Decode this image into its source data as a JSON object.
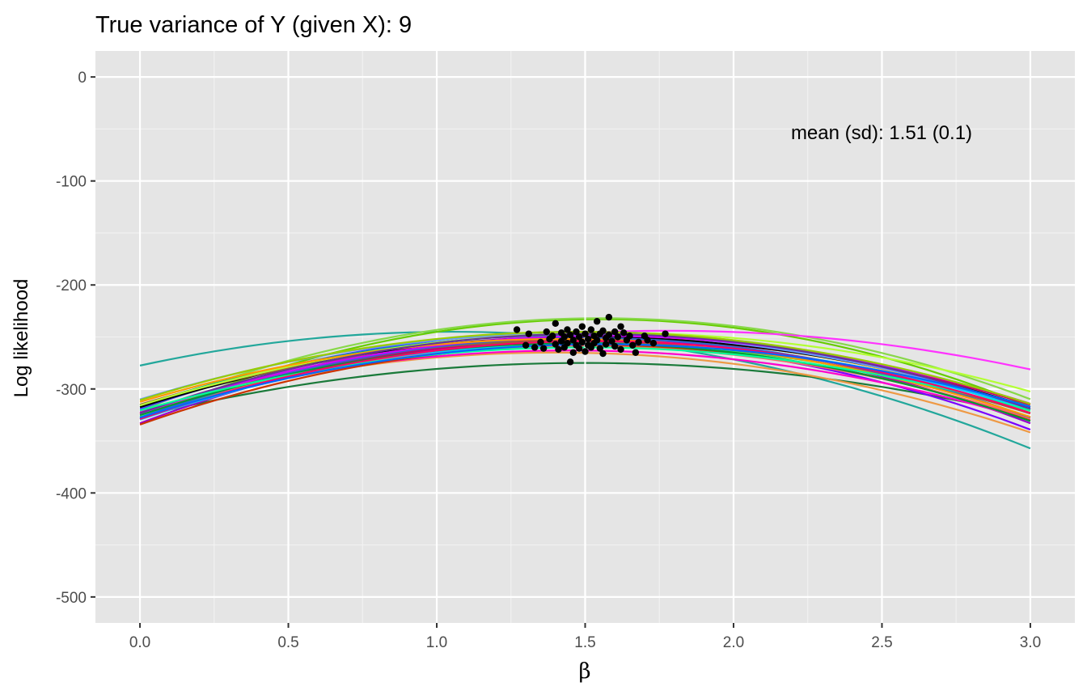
{
  "chart_data": {
    "type": "line",
    "title": "True variance of Y (given X): 9",
    "xlabel": "β",
    "ylabel": "Log likelihood",
    "xlim": [
      -0.15,
      3.15
    ],
    "ylim": [
      -525,
      25
    ],
    "x_ticks": [
      0,
      0.5,
      1,
      1.5,
      2,
      2.5,
      3
    ],
    "x_tick_labels": [
      "0.0",
      "0.5",
      "1.0",
      "1.5",
      "2.0",
      "2.5",
      "3.0"
    ],
    "y_ticks": [
      0,
      -100,
      -200,
      -300,
      -400,
      -500
    ],
    "y_tick_labels": [
      "0",
      "-100",
      "-200",
      "-300",
      "-400",
      "-500"
    ],
    "grid": true,
    "legend": "none",
    "vline_x": 1.5,
    "annotation": {
      "text": "mean (sd): 1.51 (0.1)",
      "x": 2.5,
      "y": -53
    },
    "curve_x_range": [
      0,
      3
    ],
    "series": [
      {
        "color": "#22a79b",
        "peak_x": 1.05,
        "peak_y": -245,
        "curvature": 29.5
      },
      {
        "color": "#66cc00",
        "peak_x": 1.55,
        "peak_y": -233,
        "curvature": 40.0
      },
      {
        "color": "#88d84a",
        "peak_x": 1.55,
        "peak_y": -232,
        "curvature": 37.0
      },
      {
        "color": "#ff33ff",
        "peak_x": 1.78,
        "peak_y": -244,
        "curvature": 25.0
      },
      {
        "color": "#1a7a3a",
        "peak_x": 1.5,
        "peak_y": -275,
        "curvature": 23.0
      },
      {
        "color": "#ee9944",
        "peak_x": 1.4,
        "peak_y": -265,
        "curvature": 30.0
      },
      {
        "color": "#9900cc",
        "peak_x": 1.5,
        "peak_y": -252,
        "curvature": 36.0
      },
      {
        "color": "#7a00ff",
        "peak_x": 1.45,
        "peak_y": -255,
        "curvature": 35.0
      },
      {
        "color": "#ff00cc",
        "peak_x": 1.45,
        "peak_y": -263,
        "curvature": 28.0
      },
      {
        "color": "#33ff66",
        "peak_x": 1.52,
        "peak_y": -257,
        "curvature": 30.0
      },
      {
        "color": "#4444ff",
        "peak_x": 1.5,
        "peak_y": -245,
        "curvature": 33.0
      },
      {
        "color": "#cc0066",
        "peak_x": 1.55,
        "peak_y": -252,
        "curvature": 30.0
      },
      {
        "color": "#00aa88",
        "peak_x": 1.48,
        "peak_y": -248,
        "curvature": 31.0
      },
      {
        "color": "#ffcc00",
        "peak_x": 1.52,
        "peak_y": -250,
        "curvature": 32.0
      },
      {
        "color": "#000000",
        "peak_x": 1.5,
        "peak_y": -250,
        "curvature": 30.0
      },
      {
        "color": "#6699ff",
        "peak_x": 1.45,
        "peak_y": -247,
        "curvature": 30.0
      },
      {
        "color": "#cc3300",
        "peak_x": 1.52,
        "peak_y": -258,
        "curvature": 33.0
      },
      {
        "color": "#00ccff",
        "peak_x": 1.55,
        "peak_y": -255,
        "curvature": 31.0
      },
      {
        "color": "#996633",
        "peak_x": 1.45,
        "peak_y": -254,
        "curvature": 29.0
      },
      {
        "color": "#b3ff33",
        "peak_x": 1.58,
        "peak_y": -246,
        "curvature": 28.0
      },
      {
        "color": "#ff6666",
        "peak_x": 1.48,
        "peak_y": -259,
        "curvature": 30.0
      },
      {
        "color": "#3366cc",
        "peak_x": 1.5,
        "peak_y": -251,
        "curvature": 34.0
      },
      {
        "color": "#009933",
        "peak_x": 1.47,
        "peak_y": -256,
        "curvature": 32.0
      },
      {
        "color": "#cc00ff",
        "peak_x": 1.55,
        "peak_y": -249,
        "curvature": 31.0
      },
      {
        "color": "#ff9900",
        "peak_x": 1.42,
        "peak_y": -252,
        "curvature": 30.0
      },
      {
        "color": "#663399",
        "peak_x": 1.52,
        "peak_y": -247,
        "curvature": 33.0
      },
      {
        "color": "#00ff99",
        "peak_x": 1.5,
        "peak_y": -260,
        "curvature": 27.0
      },
      {
        "color": "#ff0066",
        "peak_x": 1.53,
        "peak_y": -254,
        "curvature": 32.0
      },
      {
        "color": "#99cc00",
        "peak_x": 1.48,
        "peak_y": -245,
        "curvature": 30.0
      },
      {
        "color": "#0066ff",
        "peak_x": 1.56,
        "peak_y": -257,
        "curvature": 29.0
      }
    ],
    "points": [
      {
        "x": 1.27,
        "y": -243
      },
      {
        "x": 1.3,
        "y": -258
      },
      {
        "x": 1.31,
        "y": -247
      },
      {
        "x": 1.33,
        "y": -260
      },
      {
        "x": 1.35,
        "y": -255
      },
      {
        "x": 1.36,
        "y": -261
      },
      {
        "x": 1.37,
        "y": -245
      },
      {
        "x": 1.38,
        "y": -252
      },
      {
        "x": 1.39,
        "y": -249
      },
      {
        "x": 1.4,
        "y": -237
      },
      {
        "x": 1.4,
        "y": -257
      },
      {
        "x": 1.41,
        "y": -262
      },
      {
        "x": 1.42,
        "y": -246
      },
      {
        "x": 1.42,
        "y": -254
      },
      {
        "x": 1.43,
        "y": -250
      },
      {
        "x": 1.43,
        "y": -260
      },
      {
        "x": 1.44,
        "y": -243
      },
      {
        "x": 1.44,
        "y": -256
      },
      {
        "x": 1.45,
        "y": -274
      },
      {
        "x": 1.45,
        "y": -248
      },
      {
        "x": 1.46,
        "y": -253
      },
      {
        "x": 1.46,
        "y": -265
      },
      {
        "x": 1.47,
        "y": -245
      },
      {
        "x": 1.47,
        "y": -258
      },
      {
        "x": 1.48,
        "y": -250
      },
      {
        "x": 1.48,
        "y": -261
      },
      {
        "x": 1.49,
        "y": -240
      },
      {
        "x": 1.49,
        "y": -255
      },
      {
        "x": 1.5,
        "y": -247
      },
      {
        "x": 1.5,
        "y": -264
      },
      {
        "x": 1.51,
        "y": -252
      },
      {
        "x": 1.51,
        "y": -258
      },
      {
        "x": 1.52,
        "y": -243
      },
      {
        "x": 1.52,
        "y": -260
      },
      {
        "x": 1.53,
        "y": -249
      },
      {
        "x": 1.53,
        "y": -256
      },
      {
        "x": 1.54,
        "y": -235
      },
      {
        "x": 1.54,
        "y": -253
      },
      {
        "x": 1.55,
        "y": -247
      },
      {
        "x": 1.55,
        "y": -261
      },
      {
        "x": 1.56,
        "y": -244
      },
      {
        "x": 1.56,
        "y": -266
      },
      {
        "x": 1.57,
        "y": -251
      },
      {
        "x": 1.57,
        "y": -257
      },
      {
        "x": 1.58,
        "y": -231
      },
      {
        "x": 1.58,
        "y": -248
      },
      {
        "x": 1.59,
        "y": -254
      },
      {
        "x": 1.6,
        "y": -245
      },
      {
        "x": 1.6,
        "y": -259
      },
      {
        "x": 1.61,
        "y": -250
      },
      {
        "x": 1.62,
        "y": -240
      },
      {
        "x": 1.62,
        "y": -262
      },
      {
        "x": 1.63,
        "y": -246
      },
      {
        "x": 1.64,
        "y": -253
      },
      {
        "x": 1.65,
        "y": -249
      },
      {
        "x": 1.66,
        "y": -258
      },
      {
        "x": 1.67,
        "y": -265
      },
      {
        "x": 1.68,
        "y": -255
      },
      {
        "x": 1.7,
        "y": -249
      },
      {
        "x": 1.71,
        "y": -253
      },
      {
        "x": 1.73,
        "y": -256
      },
      {
        "x": 1.77,
        "y": -247
      }
    ]
  }
}
